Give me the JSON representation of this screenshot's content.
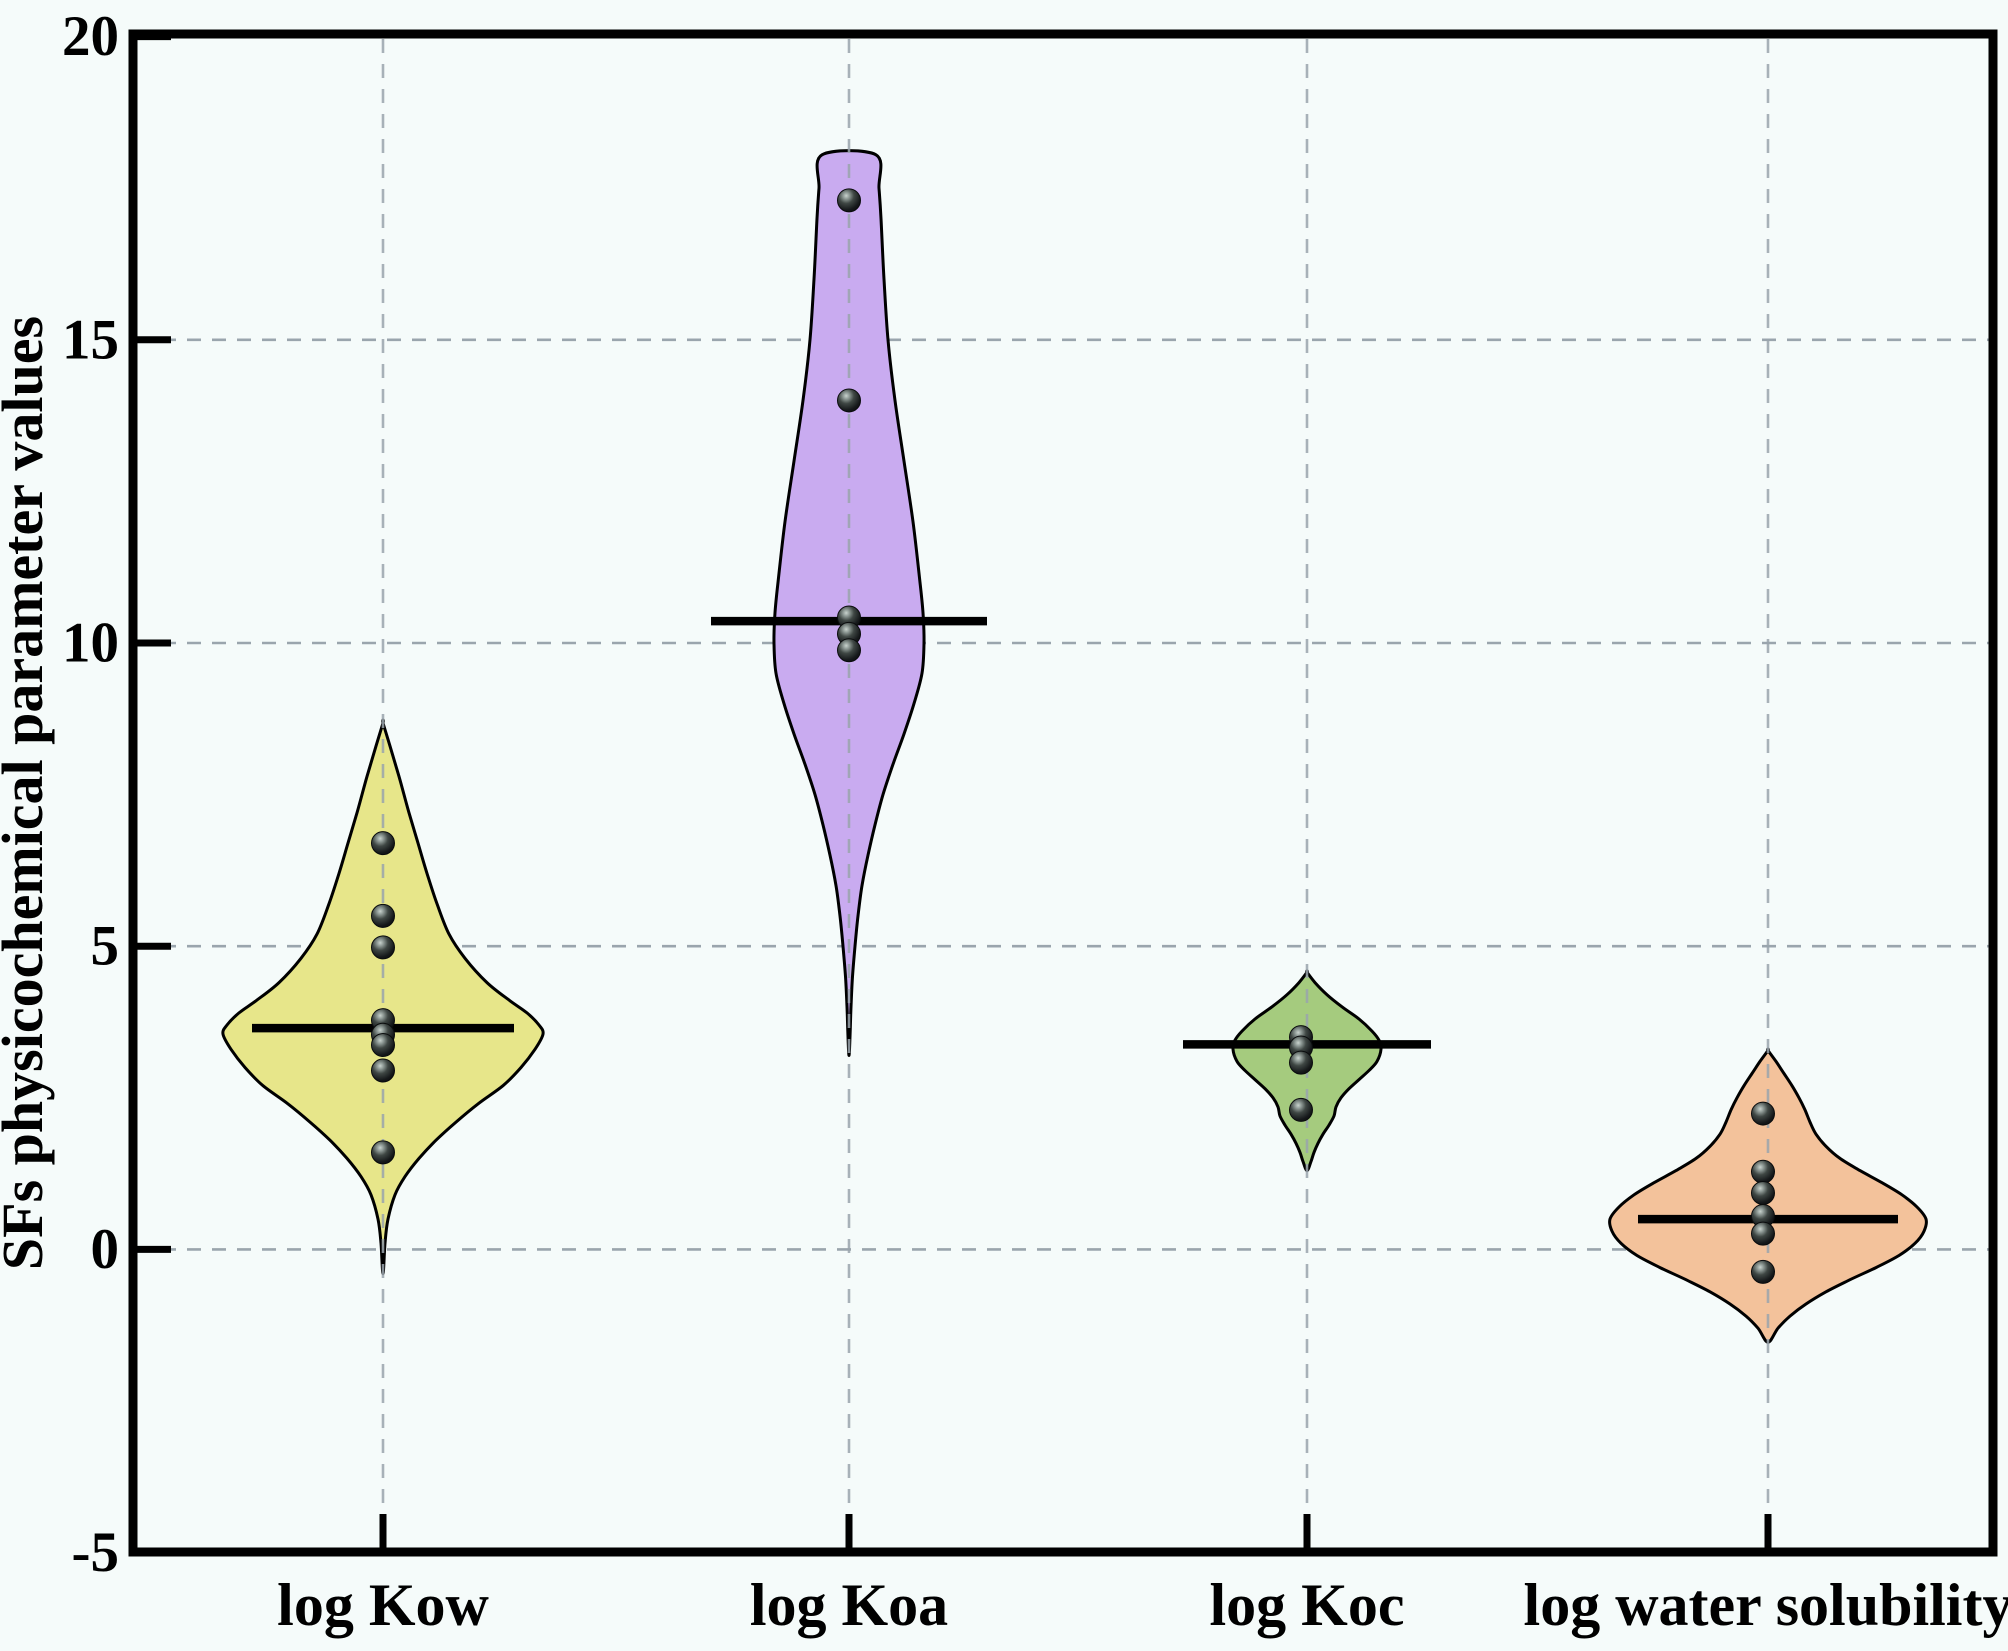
{
  "figure": {
    "background_color": "#f5fbfa",
    "frame_color": "#000000",
    "gridline_color": "#9aa5ad",
    "point_color": "#1a1d1f"
  },
  "axes": {
    "y_title": "SFs physicochemical parameter values",
    "y_tick_labels": [
      "20",
      "15",
      "10",
      "5",
      "0",
      "-5"
    ],
    "x_category_labels": [
      "log Kow",
      "log Koa",
      "log Koc",
      "log water solubility"
    ]
  },
  "chart_data": {
    "type": "violin",
    "title": "",
    "xlabel": "",
    "ylabel": "SFs physicochemical parameter values",
    "ylim": [
      -5,
      20
    ],
    "yticks": [
      20,
      15,
      10,
      5,
      0,
      -5
    ],
    "grid": "dashed horizontal gridlines at y=0,5,10,15 and dashed vertical drop-line at each category center",
    "legend_position": "none",
    "categories": [
      "log Kow",
      "log Koa",
      "log Koc",
      "log water solubility"
    ],
    "series": [
      {
        "name": "log Kow",
        "fill_color": "#e7e68a",
        "median": 3.65,
        "range": [
          -0.4,
          8.7
        ],
        "flat_top": false,
        "points": [
          6.7,
          5.5,
          4.98,
          3.78,
          3.54,
          3.37,
          2.95,
          1.6
        ],
        "outline_profile_value_halfwidthpx": [
          [
            8.68,
            0
          ],
          [
            8.3,
            7
          ],
          [
            7.8,
            16
          ],
          [
            7.2,
            26
          ],
          [
            6.7,
            35
          ],
          [
            6.2,
            44
          ],
          [
            5.7,
            54
          ],
          [
            5.2,
            66
          ],
          [
            4.8,
            82
          ],
          [
            4.4,
            104
          ],
          [
            4.1,
            127
          ],
          [
            3.9,
            144
          ],
          [
            3.7,
            156
          ],
          [
            3.55,
            160
          ],
          [
            3.3,
            152
          ],
          [
            3.0,
            138
          ],
          [
            2.7,
            120
          ],
          [
            2.4,
            95
          ],
          [
            2.1,
            73
          ],
          [
            1.8,
            53
          ],
          [
            1.5,
            36
          ],
          [
            1.2,
            22
          ],
          [
            0.9,
            12
          ],
          [
            0.5,
            5
          ],
          [
            0.1,
            2
          ],
          [
            -0.4,
            0
          ]
        ]
      },
      {
        "name": "log Koa",
        "fill_color": "#c9abf0",
        "median": 10.36,
        "range": [
          3.2,
          18.05
        ],
        "flat_top": true,
        "points": [
          17.3,
          14.0,
          10.42,
          10.15,
          9.88
        ],
        "outline_profile_value_halfwidthpx": [
          [
            18.05,
            27
          ],
          [
            17.5,
            30
          ],
          [
            17.0,
            32
          ],
          [
            16.0,
            35
          ],
          [
            15.0,
            39
          ],
          [
            14.0,
            46
          ],
          [
            13.0,
            55
          ],
          [
            12.0,
            64
          ],
          [
            11.0,
            71
          ],
          [
            10.5,
            74
          ],
          [
            10.0,
            75
          ],
          [
            9.5,
            73
          ],
          [
            9.0,
            65
          ],
          [
            8.5,
            55
          ],
          [
            8.0,
            44
          ],
          [
            7.5,
            34
          ],
          [
            7.0,
            26
          ],
          [
            6.5,
            19
          ],
          [
            6.0,
            13
          ],
          [
            5.5,
            9
          ],
          [
            5.0,
            6
          ],
          [
            4.5,
            3.5
          ],
          [
            4.0,
            2
          ],
          [
            3.6,
            1.2
          ],
          [
            3.2,
            0
          ]
        ]
      },
      {
        "name": "log Koc",
        "fill_color": "#a5cb7e",
        "median": 3.38,
        "range": [
          1.3,
          4.57
        ],
        "flat_top": false,
        "points": [
          3.5,
          3.33,
          3.08,
          2.3
        ],
        "outline_profile_value_halfwidthpx": [
          [
            4.57,
            0
          ],
          [
            4.4,
            8
          ],
          [
            4.2,
            20
          ],
          [
            4.0,
            35
          ],
          [
            3.8,
            52
          ],
          [
            3.6,
            65
          ],
          [
            3.45,
            72
          ],
          [
            3.3,
            74
          ],
          [
            3.1,
            70
          ],
          [
            2.95,
            62
          ],
          [
            2.8,
            52
          ],
          [
            2.65,
            42
          ],
          [
            2.5,
            34
          ],
          [
            2.35,
            29
          ],
          [
            2.2,
            27
          ],
          [
            2.05,
            22
          ],
          [
            1.9,
            16
          ],
          [
            1.75,
            11
          ],
          [
            1.6,
            7
          ],
          [
            1.45,
            4
          ],
          [
            1.3,
            0
          ]
        ]
      },
      {
        "name": "log water solubility",
        "fill_color": "#f3c29b",
        "median": 0.5,
        "range": [
          -1.53,
          3.28
        ],
        "flat_top": false,
        "points": [
          2.24,
          1.28,
          0.93,
          0.55,
          0.26,
          -0.37
        ],
        "outline_profile_value_halfwidthpx": [
          [
            3.28,
            0
          ],
          [
            3.1,
            8
          ],
          [
            2.9,
            16
          ],
          [
            2.7,
            24
          ],
          [
            2.5,
            31
          ],
          [
            2.3,
            37
          ],
          [
            2.1,
            42
          ],
          [
            1.9,
            48
          ],
          [
            1.7,
            58
          ],
          [
            1.5,
            72
          ],
          [
            1.3,
            92
          ],
          [
            1.1,
            114
          ],
          [
            0.9,
            134
          ],
          [
            0.7,
            149
          ],
          [
            0.5,
            158
          ],
          [
            0.3,
            156
          ],
          [
            0.1,
            147
          ],
          [
            -0.1,
            131
          ],
          [
            -0.3,
            108
          ],
          [
            -0.5,
            82
          ],
          [
            -0.7,
            58
          ],
          [
            -0.9,
            38
          ],
          [
            -1.1,
            22
          ],
          [
            -1.3,
            10
          ],
          [
            -1.53,
            0
          ]
        ]
      }
    ]
  }
}
